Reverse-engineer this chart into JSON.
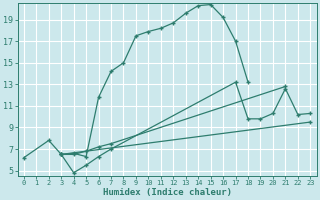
{
  "xlabel": "Humidex (Indice chaleur)",
  "bg_color": "#cce8ec",
  "grid_color": "#ffffff",
  "line_color": "#2e7d6e",
  "xlim": [
    -0.5,
    23.5
  ],
  "ylim": [
    4.5,
    20.5
  ],
  "xticks": [
    0,
    1,
    2,
    3,
    4,
    5,
    6,
    7,
    8,
    9,
    10,
    11,
    12,
    13,
    14,
    15,
    16,
    17,
    18,
    19,
    20,
    21,
    22,
    23
  ],
  "yticks": [
    5,
    7,
    9,
    11,
    13,
    15,
    17,
    19
  ],
  "curve1_x": [
    0,
    2,
    3,
    4,
    5,
    6,
    7,
    8,
    9,
    10,
    11,
    12,
    13,
    14,
    15,
    16,
    17,
    18
  ],
  "curve1_y": [
    6.2,
    7.8,
    6.5,
    6.6,
    6.3,
    11.8,
    14.2,
    15.0,
    17.5,
    17.9,
    18.2,
    18.7,
    19.6,
    20.3,
    20.4,
    19.2,
    17.0,
    13.2
  ],
  "curve2_x": [
    3,
    4,
    5,
    6,
    7,
    17,
    18,
    19,
    20,
    21,
    22,
    23
  ],
  "curve2_y": [
    6.5,
    4.8,
    5.5,
    6.3,
    7.0,
    13.2,
    9.8,
    9.8,
    10.3,
    12.6,
    10.2,
    10.3
  ],
  "line3_x": [
    3,
    4,
    5,
    6,
    7,
    21
  ],
  "line3_y": [
    6.5,
    6.5,
    6.8,
    7.2,
    7.5,
    12.8
  ],
  "line4_x": [
    3,
    23
  ],
  "line4_y": [
    6.5,
    9.5
  ]
}
